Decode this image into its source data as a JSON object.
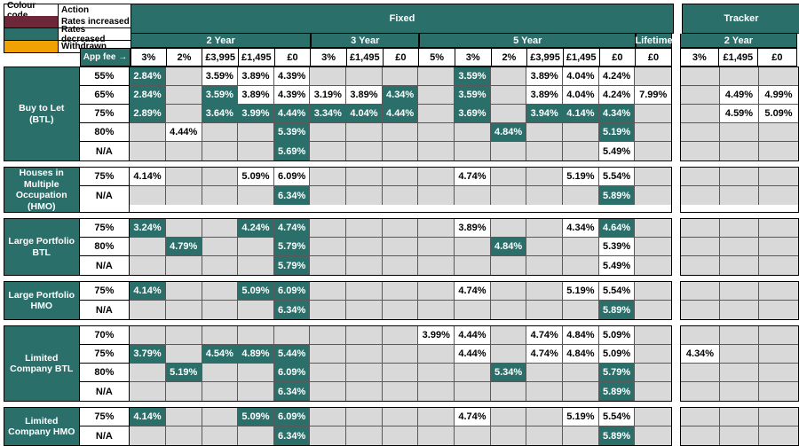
{
  "colors": {
    "teal_decreased": "#2A6F6A",
    "maroon_increased": "#6E2639",
    "orange_withdrawn": "#F2A104",
    "empty_cell": "#D9D9D9",
    "gridline": "#595959"
  },
  "legend": {
    "col1": "Colour code",
    "col2": "Action",
    "items": [
      {
        "key": "increased",
        "label": "Rates increased",
        "color": "#6E2639"
      },
      {
        "key": "decreased",
        "label": "Rates decreased",
        "color": "#2A6F6A"
      },
      {
        "key": "withdrawn",
        "label": "Withdrawn",
        "color": "#F2A104"
      }
    ]
  },
  "header": {
    "fixed_label": "Fixed",
    "tracker_label": "Tracker",
    "app_fee_label": "App fee →",
    "fixed_groups": [
      {
        "label": "2 Year",
        "fees": [
          "3%",
          "2%",
          "£3,995",
          "£1,495",
          "£0"
        ]
      },
      {
        "label": "3 Year",
        "fees": [
          "3%",
          "£1,495",
          "£0"
        ]
      },
      {
        "label": "5 Year",
        "fees": [
          "5%",
          "3%",
          "2%",
          "£3,995",
          "£1,495",
          "£0"
        ]
      },
      {
        "label": "Lifetime",
        "fees": [
          "£0"
        ]
      }
    ],
    "tracker_groups": [
      {
        "label": "2 Year",
        "fees": [
          "3%",
          "£1,495",
          "£0"
        ]
      }
    ]
  },
  "cell_note": "f = 15 fixed-rate cells in column order; t = 3 tracker cells; * prefix = rates decreased (teal); empty string = no product (grey)",
  "sections": [
    {
      "product": "Buy to Let (BTL)",
      "rows": [
        {
          "ltv": "55%",
          "f": [
            "*2.84%",
            "",
            "3.59%",
            "3.89%",
            "4.39%",
            "",
            "",
            "",
            "",
            "*3.59%",
            "",
            "3.89%",
            "4.04%",
            "4.24%",
            ""
          ],
          "t": [
            "",
            "",
            ""
          ]
        },
        {
          "ltv": "65%",
          "f": [
            "*2.84%",
            "",
            "*3.59%",
            "3.89%",
            "4.39%",
            "3.19%",
            "3.89%",
            "*4.34%",
            "",
            "*3.59%",
            "",
            "3.89%",
            "4.04%",
            "4.24%",
            "7.99%"
          ],
          "t": [
            "",
            "4.49%",
            "4.99%"
          ]
        },
        {
          "ltv": "75%",
          "f": [
            "*2.89%",
            "",
            "*3.64%",
            "*3.99%",
            "*4.44%",
            "*3.34%",
            "*4.04%",
            "*4.44%",
            "",
            "*3.69%",
            "",
            "*3.94%",
            "*4.14%",
            "*4.34%",
            ""
          ],
          "t": [
            "",
            "4.59%",
            "5.09%"
          ]
        },
        {
          "ltv": "80%",
          "f": [
            "",
            "4.44%",
            "",
            "",
            "*5.39%",
            "",
            "",
            "",
            "",
            "",
            "*4.84%",
            "",
            "",
            "*5.19%",
            ""
          ],
          "t": [
            "",
            "",
            ""
          ]
        },
        {
          "ltv": "N/A",
          "f": [
            "",
            "",
            "",
            "",
            "*5.69%",
            "",
            "",
            "",
            "",
            "",
            "",
            "",
            "",
            "5.49%",
            ""
          ],
          "t": [
            "",
            "",
            ""
          ]
        }
      ]
    },
    {
      "product": "Houses in Multiple Occupation (HMO)",
      "rows": [
        {
          "ltv": "75%",
          "f": [
            "4.14%",
            "",
            "",
            "5.09%",
            "6.09%",
            "",
            "",
            "",
            "",
            "4.74%",
            "",
            "",
            "5.19%",
            "5.54%",
            ""
          ],
          "t": [
            "",
            "",
            ""
          ]
        },
        {
          "ltv": "N/A",
          "f": [
            "",
            "",
            "",
            "",
            "*6.34%",
            "",
            "",
            "",
            "",
            "",
            "",
            "",
            "",
            "*5.89%",
            ""
          ],
          "t": [
            "",
            "",
            ""
          ]
        }
      ]
    },
    {
      "product": "Large Portfolio BTL",
      "rows": [
        {
          "ltv": "75%",
          "f": [
            "*3.24%",
            "",
            "",
            "*4.24%",
            "*4.74%",
            "",
            "",
            "",
            "",
            "3.89%",
            "",
            "",
            "4.34%",
            "*4.64%",
            ""
          ],
          "t": [
            "",
            "",
            ""
          ]
        },
        {
          "ltv": "80%",
          "f": [
            "",
            "*4.79%",
            "",
            "",
            "*5.79%",
            "",
            "",
            "",
            "",
            "",
            "*4.84%",
            "",
            "",
            "5.39%",
            ""
          ],
          "t": [
            "",
            "",
            ""
          ]
        },
        {
          "ltv": "N/A",
          "f": [
            "",
            "",
            "",
            "",
            "*5.79%",
            "",
            "",
            "",
            "",
            "",
            "",
            "",
            "",
            "5.49%",
            ""
          ],
          "t": [
            "",
            "",
            ""
          ]
        }
      ]
    },
    {
      "product": "Large Portfolio HMO",
      "rows": [
        {
          "ltv": "75%",
          "f": [
            "*4.14%",
            "",
            "",
            "*5.09%",
            "*6.09%",
            "",
            "",
            "",
            "",
            "4.74%",
            "",
            "",
            "5.19%",
            "5.54%",
            ""
          ],
          "t": [
            "",
            "",
            ""
          ]
        },
        {
          "ltv": "N/A",
          "f": [
            "",
            "",
            "",
            "",
            "*6.34%",
            "",
            "",
            "",
            "",
            "",
            "",
            "",
            "",
            "*5.89%",
            ""
          ],
          "t": [
            "",
            "",
            ""
          ]
        }
      ]
    },
    {
      "product": "Limited Company BTL",
      "rows": [
        {
          "ltv": "70%",
          "f": [
            "",
            "",
            "",
            "",
            "",
            "",
            "",
            "",
            "3.99%",
            "4.44%",
            "",
            "4.74%",
            "4.84%",
            "5.09%",
            ""
          ],
          "t": [
            "",
            "",
            ""
          ]
        },
        {
          "ltv": "75%",
          "f": [
            "*3.79%",
            "",
            "*4.54%",
            "*4.89%",
            "*5.44%",
            "",
            "",
            "",
            "",
            "4.44%",
            "",
            "4.74%",
            "4.84%",
            "5.09%",
            ""
          ],
          "t": [
            "4.34%",
            "",
            ""
          ]
        },
        {
          "ltv": "80%",
          "f": [
            "",
            "*5.19%",
            "",
            "",
            "*6.09%",
            "",
            "",
            "",
            "",
            "",
            "*5.34%",
            "",
            "",
            "*5.79%",
            ""
          ],
          "t": [
            "",
            "",
            ""
          ]
        },
        {
          "ltv": "N/A",
          "f": [
            "",
            "",
            "",
            "",
            "*6.34%",
            "",
            "",
            "",
            "",
            "",
            "",
            "",
            "",
            "*5.89%",
            ""
          ],
          "t": [
            "",
            "",
            ""
          ]
        }
      ]
    },
    {
      "product": "Limited Company HMO",
      "rows": [
        {
          "ltv": "75%",
          "f": [
            "*4.14%",
            "",
            "",
            "*5.09%",
            "*6.09%",
            "",
            "",
            "",
            "",
            "4.74%",
            "",
            "",
            "5.19%",
            "5.54%",
            ""
          ],
          "t": [
            "",
            "",
            ""
          ]
        },
        {
          "ltv": "N/A",
          "f": [
            "",
            "",
            "",
            "",
            "*6.34%",
            "",
            "",
            "",
            "",
            "",
            "",
            "",
            "",
            "*5.89%",
            ""
          ],
          "t": [
            "",
            "",
            ""
          ]
        }
      ]
    }
  ]
}
